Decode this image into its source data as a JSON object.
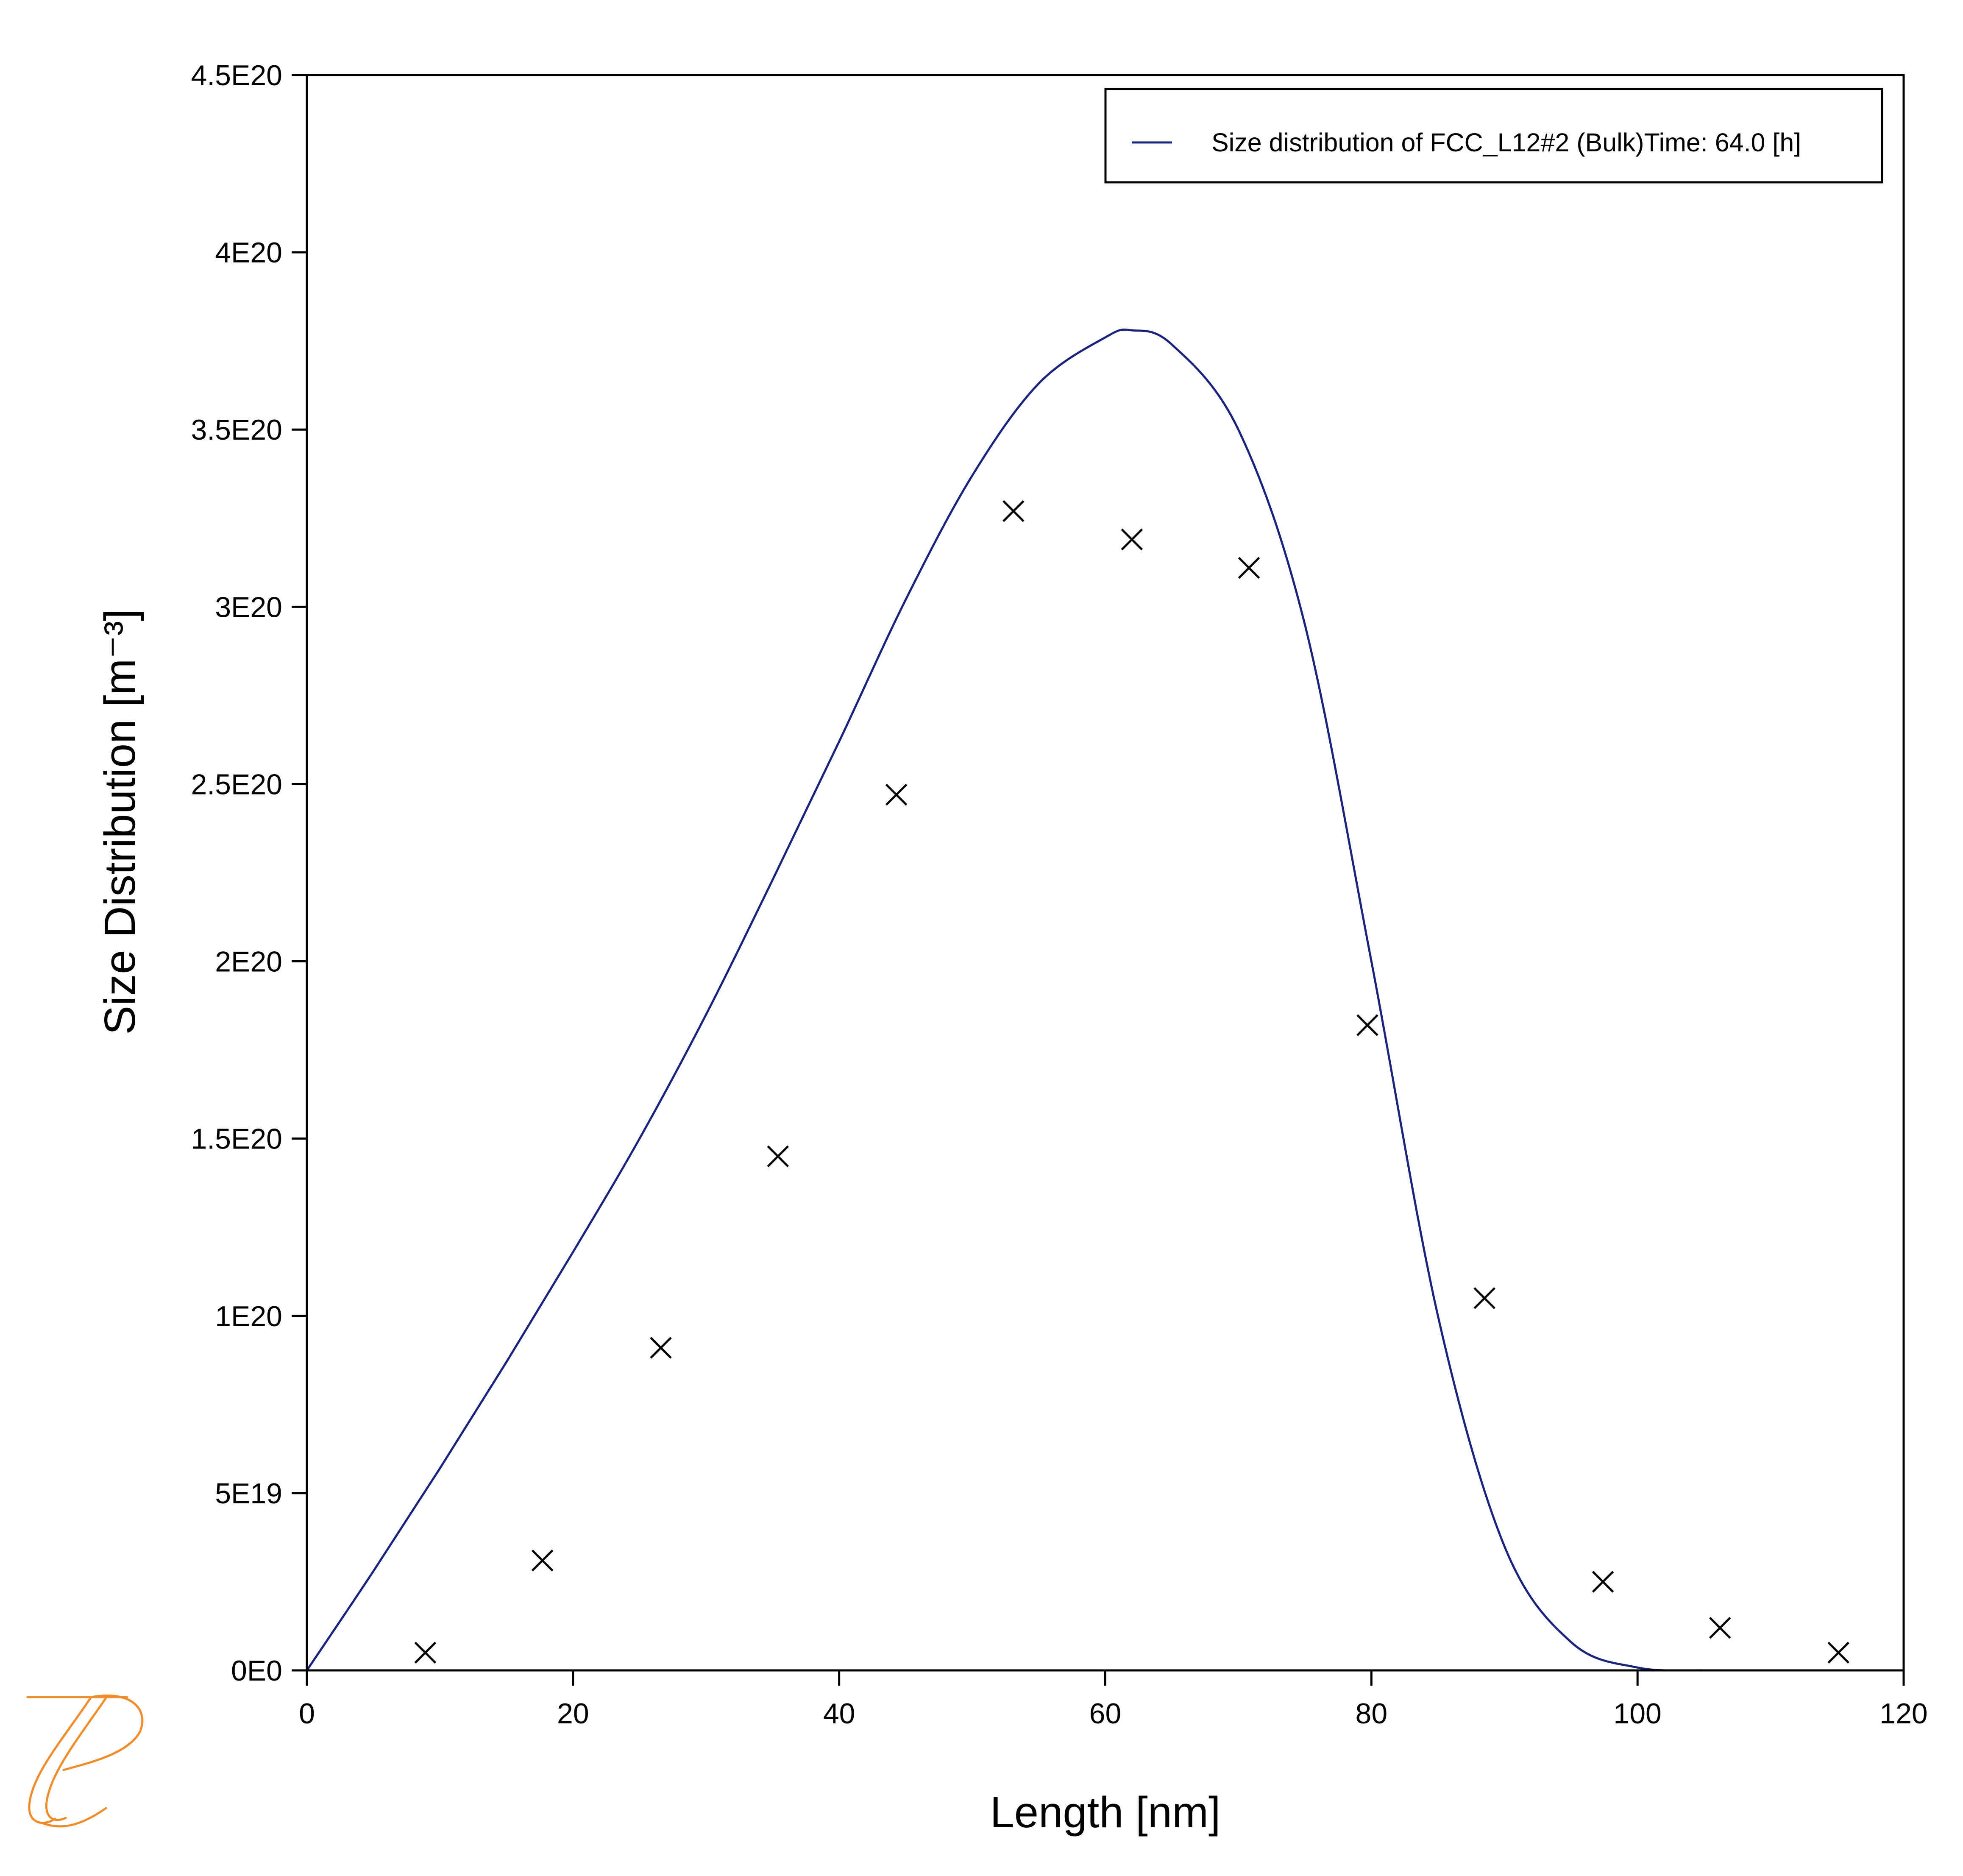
{
  "chart_data": {
    "type": "line",
    "title": "",
    "xlabel": "Length [nm]",
    "ylabel": "Size Distribution [m⁻³]",
    "xlim": [
      0,
      120
    ],
    "ylim": [
      0,
      4.5e+20
    ],
    "x_ticks": [
      0,
      20,
      40,
      60,
      80,
      100,
      120
    ],
    "x_tick_labels": [
      "0",
      "20",
      "40",
      "60",
      "80",
      "100",
      "120"
    ],
    "y_ticks": [
      0,
      5e+19,
      1e+20,
      1.5e+20,
      2e+20,
      2.5e+20,
      3e+20,
      3.5e+20,
      4e+20,
      4.5e+20
    ],
    "y_tick_labels": [
      "0E0",
      "5E19",
      "1E20",
      "1.5E20",
      "2E20",
      "2.5E20",
      "3E20",
      "3.5E20",
      "4E20",
      "4.5E20"
    ],
    "grid": false,
    "legend_position": "top-right",
    "series": [
      {
        "name": "Size distribution of FCC_L12#2 (Bulk)Time: 64.0  [h]",
        "kind": "line",
        "color": "#1a237e",
        "x": [
          0,
          5,
          10,
          15,
          20,
          25,
          30,
          35,
          40,
          45,
          50,
          55,
          60,
          62,
          65,
          70,
          75,
          80,
          85,
          90,
          95,
          100,
          105
        ],
        "y": [
          0,
          2.8e+19,
          5.7e+19,
          8.7e+19,
          1.18e+20,
          1.5e+20,
          1.85e+20,
          2.23e+20,
          2.62e+20,
          3.02e+20,
          3.37e+20,
          3.63e+20,
          3.76e+20,
          3.78e+20,
          3.74e+20,
          3.5e+20,
          2.95e+20,
          2e+20,
          1e+20,
          3.5e+19,
          8e+18,
          8e+17,
          0
        ]
      },
      {
        "kind": "scatter",
        "marker": "x",
        "color": "#000000",
        "x": [
          8.9,
          17.7,
          26.6,
          35.4,
          44.3,
          53.1,
          62.0,
          70.8,
          79.7,
          88.5,
          97.4,
          106.2,
          115.1
        ],
        "y": [
          5e+18,
          3.1e+19,
          9.1e+19,
          1.45e+20,
          2.47e+20,
          3.27e+20,
          3.19e+20,
          3.11e+20,
          1.82e+20,
          1.05e+20,
          2.5e+19,
          1.2e+19,
          5e+18
        ]
      }
    ]
  },
  "logo": {
    "name": "thermo-calc-logo-icon",
    "color": "#f28c28"
  }
}
